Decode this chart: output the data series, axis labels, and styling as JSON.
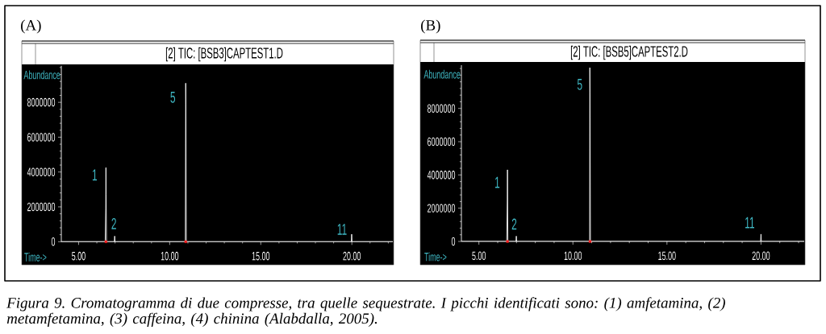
{
  "chart_data": [
    {
      "type": "line",
      "title": "(A)",
      "subtitle": "[2] TIC: [BSB3]CAPTEST1.D",
      "xlabel": "Time->",
      "ylabel": "Abundance",
      "xlim": [
        4.05,
        22.25
      ],
      "ylim": [
        0,
        10100000
      ],
      "xticks": [
        {
          "value": 5,
          "label": "5.00"
        },
        {
          "value": 6,
          "label": null
        },
        {
          "value": 7,
          "label": null
        },
        {
          "value": 8,
          "label": null
        },
        {
          "value": 9,
          "label": null
        },
        {
          "value": 10,
          "label": "10.00"
        },
        {
          "value": 11,
          "label": null
        },
        {
          "value": 12,
          "label": null
        },
        {
          "value": 13,
          "label": null
        },
        {
          "value": 14,
          "label": null
        },
        {
          "value": 15,
          "label": "15.00"
        },
        {
          "value": 16,
          "label": null
        },
        {
          "value": 17,
          "label": null
        },
        {
          "value": 18,
          "label": null
        },
        {
          "value": 19,
          "label": null
        },
        {
          "value": 20,
          "label": "20.00"
        },
        {
          "value": 21,
          "label": null
        },
        {
          "value": 22,
          "label": null
        }
      ],
      "yticks": [
        0,
        {
          "value": 400000,
          "label": null
        },
        {
          "value": 800000,
          "label": null
        },
        {
          "value": 1200000,
          "label": null
        },
        {
          "value": 1600000,
          "label": null
        },
        2000000,
        {
          "value": 2400000,
          "label": null
        },
        {
          "value": 2800000,
          "label": null
        },
        {
          "value": 3200000,
          "label": null
        },
        {
          "value": 3600000,
          "label": null
        },
        4000000,
        {
          "value": 4400000,
          "label": null
        },
        {
          "value": 4800000,
          "label": null
        },
        {
          "value": 5200000,
          "label": null
        },
        {
          "value": 5600000,
          "label": null
        },
        6000000,
        {
          "value": 6400000,
          "label": null
        },
        {
          "value": 6800000,
          "label": null
        },
        {
          "value": 7200000,
          "label": null
        },
        {
          "value": 7600000,
          "label": null
        },
        8000000,
        {
          "value": 8400000,
          "label": null
        },
        {
          "value": 8800000,
          "label": null
        },
        {
          "value": 9200000,
          "label": null
        },
        {
          "value": 9600000,
          "label": null
        },
        {
          "value": 10000000,
          "label": null
        }
      ],
      "marker": "none",
      "series": [
        {
          "color": "#ffffff",
          "x": [
            4.05,
            6.46,
            6.49,
            6.5,
            6.51,
            6.53,
            6.96,
            6.98,
            7.0,
            10.86,
            10.88,
            10.89,
            10.91,
            19.97,
            19.99,
            20.01,
            22.25
          ],
          "values": [
            0,
            0,
            1950000,
            4250000,
            2700000,
            0,
            0,
            320000,
            0,
            0,
            9100000,
            7870000,
            0,
            0,
            430000,
            0,
            0
          ]
        },
        {
          "type": "scatter",
          "color": "#ff2020",
          "marker": "square",
          "x": [
            6.5,
            10.88
          ],
          "values": [
            0,
            0
          ]
        }
      ],
      "annotations": [
        {
          "text": "1",
          "x": 6.5,
          "y": 4250000
        },
        {
          "text": "2",
          "x": 6.98,
          "y": 320000
        },
        {
          "text": "5",
          "x": 10.88,
          "y": 9100000
        },
        {
          "text": "11",
          "x": 19.99,
          "y": 430000
        }
      ]
    },
    {
      "type": "line",
      "title": "(B)",
      "subtitle": "[2] TIC: [BSB5]CAPTEST2.D",
      "xlabel": "Time->",
      "ylabel": "Abundance",
      "xlim": [
        4.07,
        22.3
      ],
      "ylim": [
        0,
        10600000
      ],
      "xticks": [
        {
          "value": 5,
          "label": "5.00"
        },
        {
          "value": 6,
          "label": null
        },
        {
          "value": 7,
          "label": null
        },
        {
          "value": 8,
          "label": null
        },
        {
          "value": 9,
          "label": null
        },
        {
          "value": 10,
          "label": "10.00"
        },
        {
          "value": 11,
          "label": null
        },
        {
          "value": 12,
          "label": null
        },
        {
          "value": 13,
          "label": null
        },
        {
          "value": 14,
          "label": null
        },
        {
          "value": 15,
          "label": "15.00"
        },
        {
          "value": 16,
          "label": null
        },
        {
          "value": 17,
          "label": null
        },
        {
          "value": 18,
          "label": null
        },
        {
          "value": 19,
          "label": null
        },
        {
          "value": 20,
          "label": "20.00"
        },
        {
          "value": 21,
          "label": null
        },
        {
          "value": 22,
          "label": null
        }
      ],
      "yticks": [
        0,
        {
          "value": 400000,
          "label": null
        },
        {
          "value": 800000,
          "label": null
        },
        {
          "value": 1200000,
          "label": null
        },
        {
          "value": 1600000,
          "label": null
        },
        2000000,
        {
          "value": 2400000,
          "label": null
        },
        {
          "value": 2800000,
          "label": null
        },
        {
          "value": 3200000,
          "label": null
        },
        {
          "value": 3600000,
          "label": null
        },
        4000000,
        {
          "value": 4400000,
          "label": null
        },
        {
          "value": 4800000,
          "label": null
        },
        {
          "value": 5200000,
          "label": null
        },
        {
          "value": 5600000,
          "label": null
        },
        6000000,
        {
          "value": 6400000,
          "label": null
        },
        {
          "value": 6800000,
          "label": null
        },
        {
          "value": 7200000,
          "label": null
        },
        {
          "value": 7600000,
          "label": null
        },
        8000000,
        {
          "value": 8400000,
          "label": null
        },
        {
          "value": 8800000,
          "label": null
        },
        {
          "value": 9200000,
          "label": null
        },
        {
          "value": 9600000,
          "label": null
        },
        {
          "value": 10000000,
          "label": null
        },
        {
          "value": 10400000,
          "label": null
        }
      ],
      "marker": "none",
      "series": [
        {
          "color": "#ffffff",
          "x": [
            4.07,
            6.48,
            6.51,
            6.52,
            6.54,
            6.97,
            6.99,
            7.01,
            10.89,
            10.9,
            10.91,
            10.93,
            19.98,
            20.0,
            20.02,
            22.3
          ],
          "values": [
            0,
            0,
            2470000,
            4310000,
            0,
            0,
            320000,
            0,
            0,
            10450000,
            8960000,
            0,
            0,
            440000,
            0,
            0
          ]
        },
        {
          "type": "scatter",
          "color": "#ff2020",
          "marker": "square",
          "x": [
            6.52,
            10.91
          ],
          "values": [
            0,
            0
          ]
        }
      ],
      "annotations": [
        {
          "text": "1",
          "x": 6.52,
          "y": 4310000
        },
        {
          "text": "2",
          "x": 6.99,
          "y": 320000
        },
        {
          "text": "5",
          "x": 10.9,
          "y": 10450000
        },
        {
          "text": "11",
          "x": 20.0,
          "y": 440000
        },
        "Figura 9. Cromatogramma di due compresse, tra quelle sequestrate. I picchi identificati sono: (1) amfetamina, (2) metamfetamina, (3) caffeina, (4) chinina (Alabdalla, 2005)."
      ]
    }
  ]
}
